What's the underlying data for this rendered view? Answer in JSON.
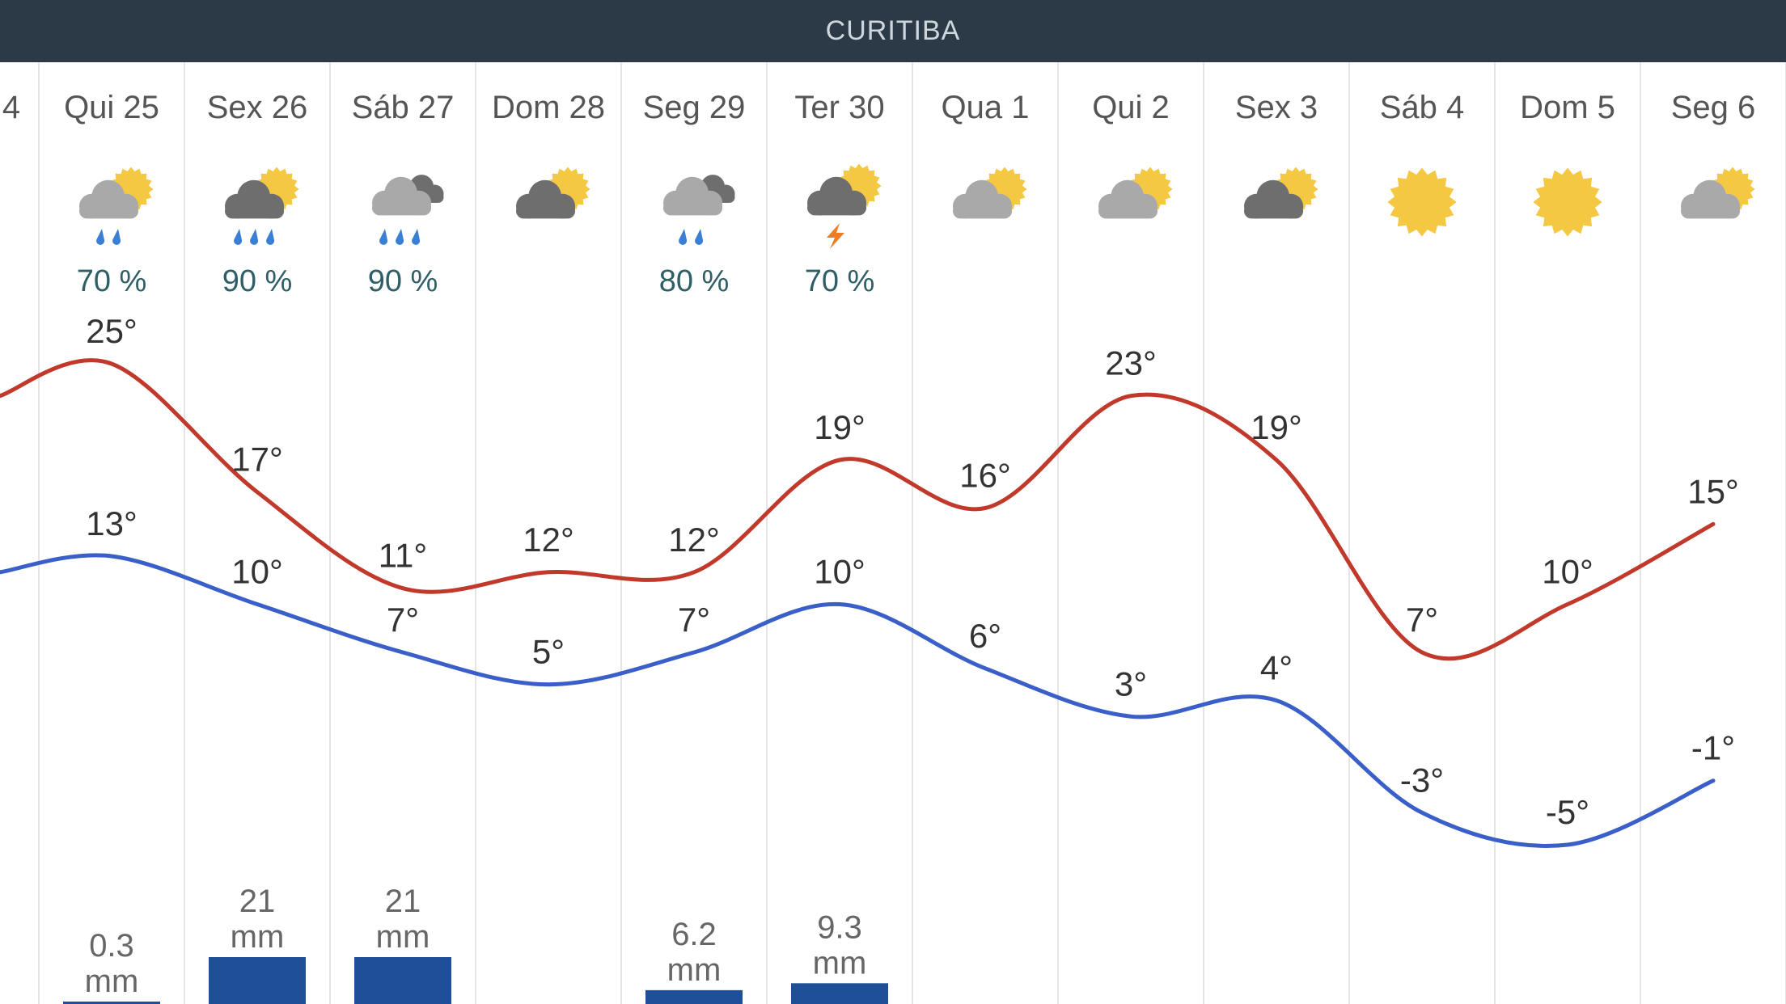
{
  "header": {
    "title": "CURITIBA"
  },
  "colors": {
    "header_bg": "#2c3a47",
    "max_line": "#c0392b",
    "min_line": "#3a5fc8",
    "precip_bar": "#1f4f99",
    "prob_text": "#2e5f66",
    "sun": "#f4c842",
    "cloud_light": "#a9a9a9",
    "cloud_dark": "#6e6e6e",
    "rain_drop": "#3a7fd5",
    "lightning": "#ef7d22",
    "grid": "#e5e5e5"
  },
  "chart_data": {
    "type": "line",
    "title": "CURITIBA",
    "partial_left_label": "4",
    "categories": [
      "Qui 25",
      "Sex 26",
      "Sáb 27",
      "Dom 28",
      "Seg 29",
      "Ter 30",
      "Qua 1",
      "Qui 2",
      "Sex 3",
      "Sáb 4",
      "Dom 5",
      "Seg 6"
    ],
    "icons": [
      "partly-cloudy-rain-icon",
      "partly-cloudy-heavy-rain-icon",
      "cloudy-rain-icon",
      "partly-cloudy-icon",
      "cloudy-rain-icon",
      "thunderstorm-icon",
      "partly-cloudy-icon",
      "partly-cloudy-icon",
      "partly-cloudy-icon",
      "sunny-icon",
      "sunny-icon",
      "partly-cloudy-icon"
    ],
    "rain_drops": [
      2,
      3,
      3,
      0,
      2,
      0,
      0,
      0,
      0,
      0,
      0,
      0
    ],
    "cloud_tone": [
      "light",
      "dark",
      "light",
      "dark",
      "light",
      "dark",
      "light",
      "light",
      "dark",
      "none",
      "none",
      "light"
    ],
    "precip_probability": [
      "70 %",
      "90 %",
      "90 %",
      "",
      "80 %",
      "70 %",
      "",
      "",
      "",
      "",
      "",
      ""
    ],
    "series": [
      {
        "name": "max",
        "values": [
          25,
          17,
          11,
          12,
          12,
          19,
          16,
          23,
          19,
          7,
          10,
          15
        ]
      },
      {
        "name": "min",
        "values": [
          13,
          10,
          7,
          5,
          7,
          10,
          6,
          3,
          4,
          -3,
          -5,
          -1
        ]
      }
    ],
    "max_labels": [
      "25°",
      "17°",
      "11°",
      "12°",
      "12°",
      "19°",
      "16°",
      "23°",
      "19°",
      "7°",
      "10°",
      "15°"
    ],
    "min_labels": [
      "13°",
      "10°",
      "7°",
      "5°",
      "7°",
      "10°",
      "6°",
      "3°",
      "4°",
      "-3°",
      "-5°",
      "-1°"
    ],
    "precipitation_mm": [
      0.3,
      21,
      21,
      0,
      6.2,
      9.3,
      0,
      0,
      0,
      0,
      0,
      0
    ],
    "precipitation_value_labels": [
      "0.3",
      "21",
      "21",
      "",
      "6.2",
      "9.3",
      "",
      "",
      "",
      "",
      "",
      ""
    ],
    "precipitation_unit": "mm",
    "ylim": [
      -8,
      28
    ],
    "grid": "vertical day separators"
  }
}
